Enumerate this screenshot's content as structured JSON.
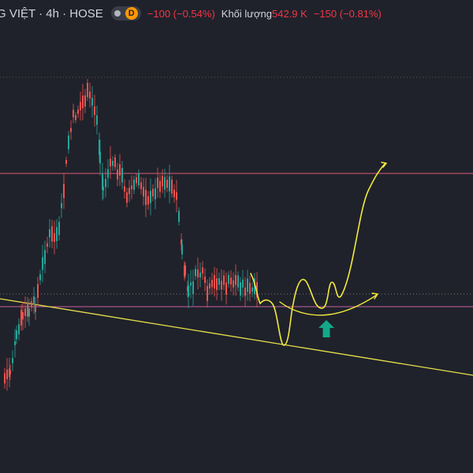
{
  "header": {
    "symbol_title": "G VIỆT · 4h · HOSE",
    "badge_letter": "D",
    "price_change": "−100 (−0.54%)",
    "volume_label": "Khối lượng",
    "volume_value": "542.9 K",
    "volume_change": "−150 (−0.81%)"
  },
  "colors": {
    "background": "#1f222b",
    "up": "#26a69a",
    "down": "#ef5350",
    "resistance_line": "#e0587a",
    "support_line": "#c85fa0",
    "trendline": "#e8e04a",
    "annotation": "#f2ea3c",
    "arrow": "#13a889"
  },
  "chart_data": {
    "type": "candlestick",
    "timeframe": "4h",
    "series_description": "price candles with hand-drawn projection",
    "levels": [
      {
        "kind": "resistance",
        "style": "solid",
        "color": "#e0587a"
      },
      {
        "kind": "support",
        "style": "solid",
        "color": "#c85fa0"
      },
      {
        "kind": "dotted",
        "style": "dotted",
        "color": "#b98a8a"
      }
    ],
    "trendline": {
      "color": "#e8e04a"
    },
    "annotations": [
      "projection-path",
      "cup-arc",
      "up-arrow"
    ]
  }
}
